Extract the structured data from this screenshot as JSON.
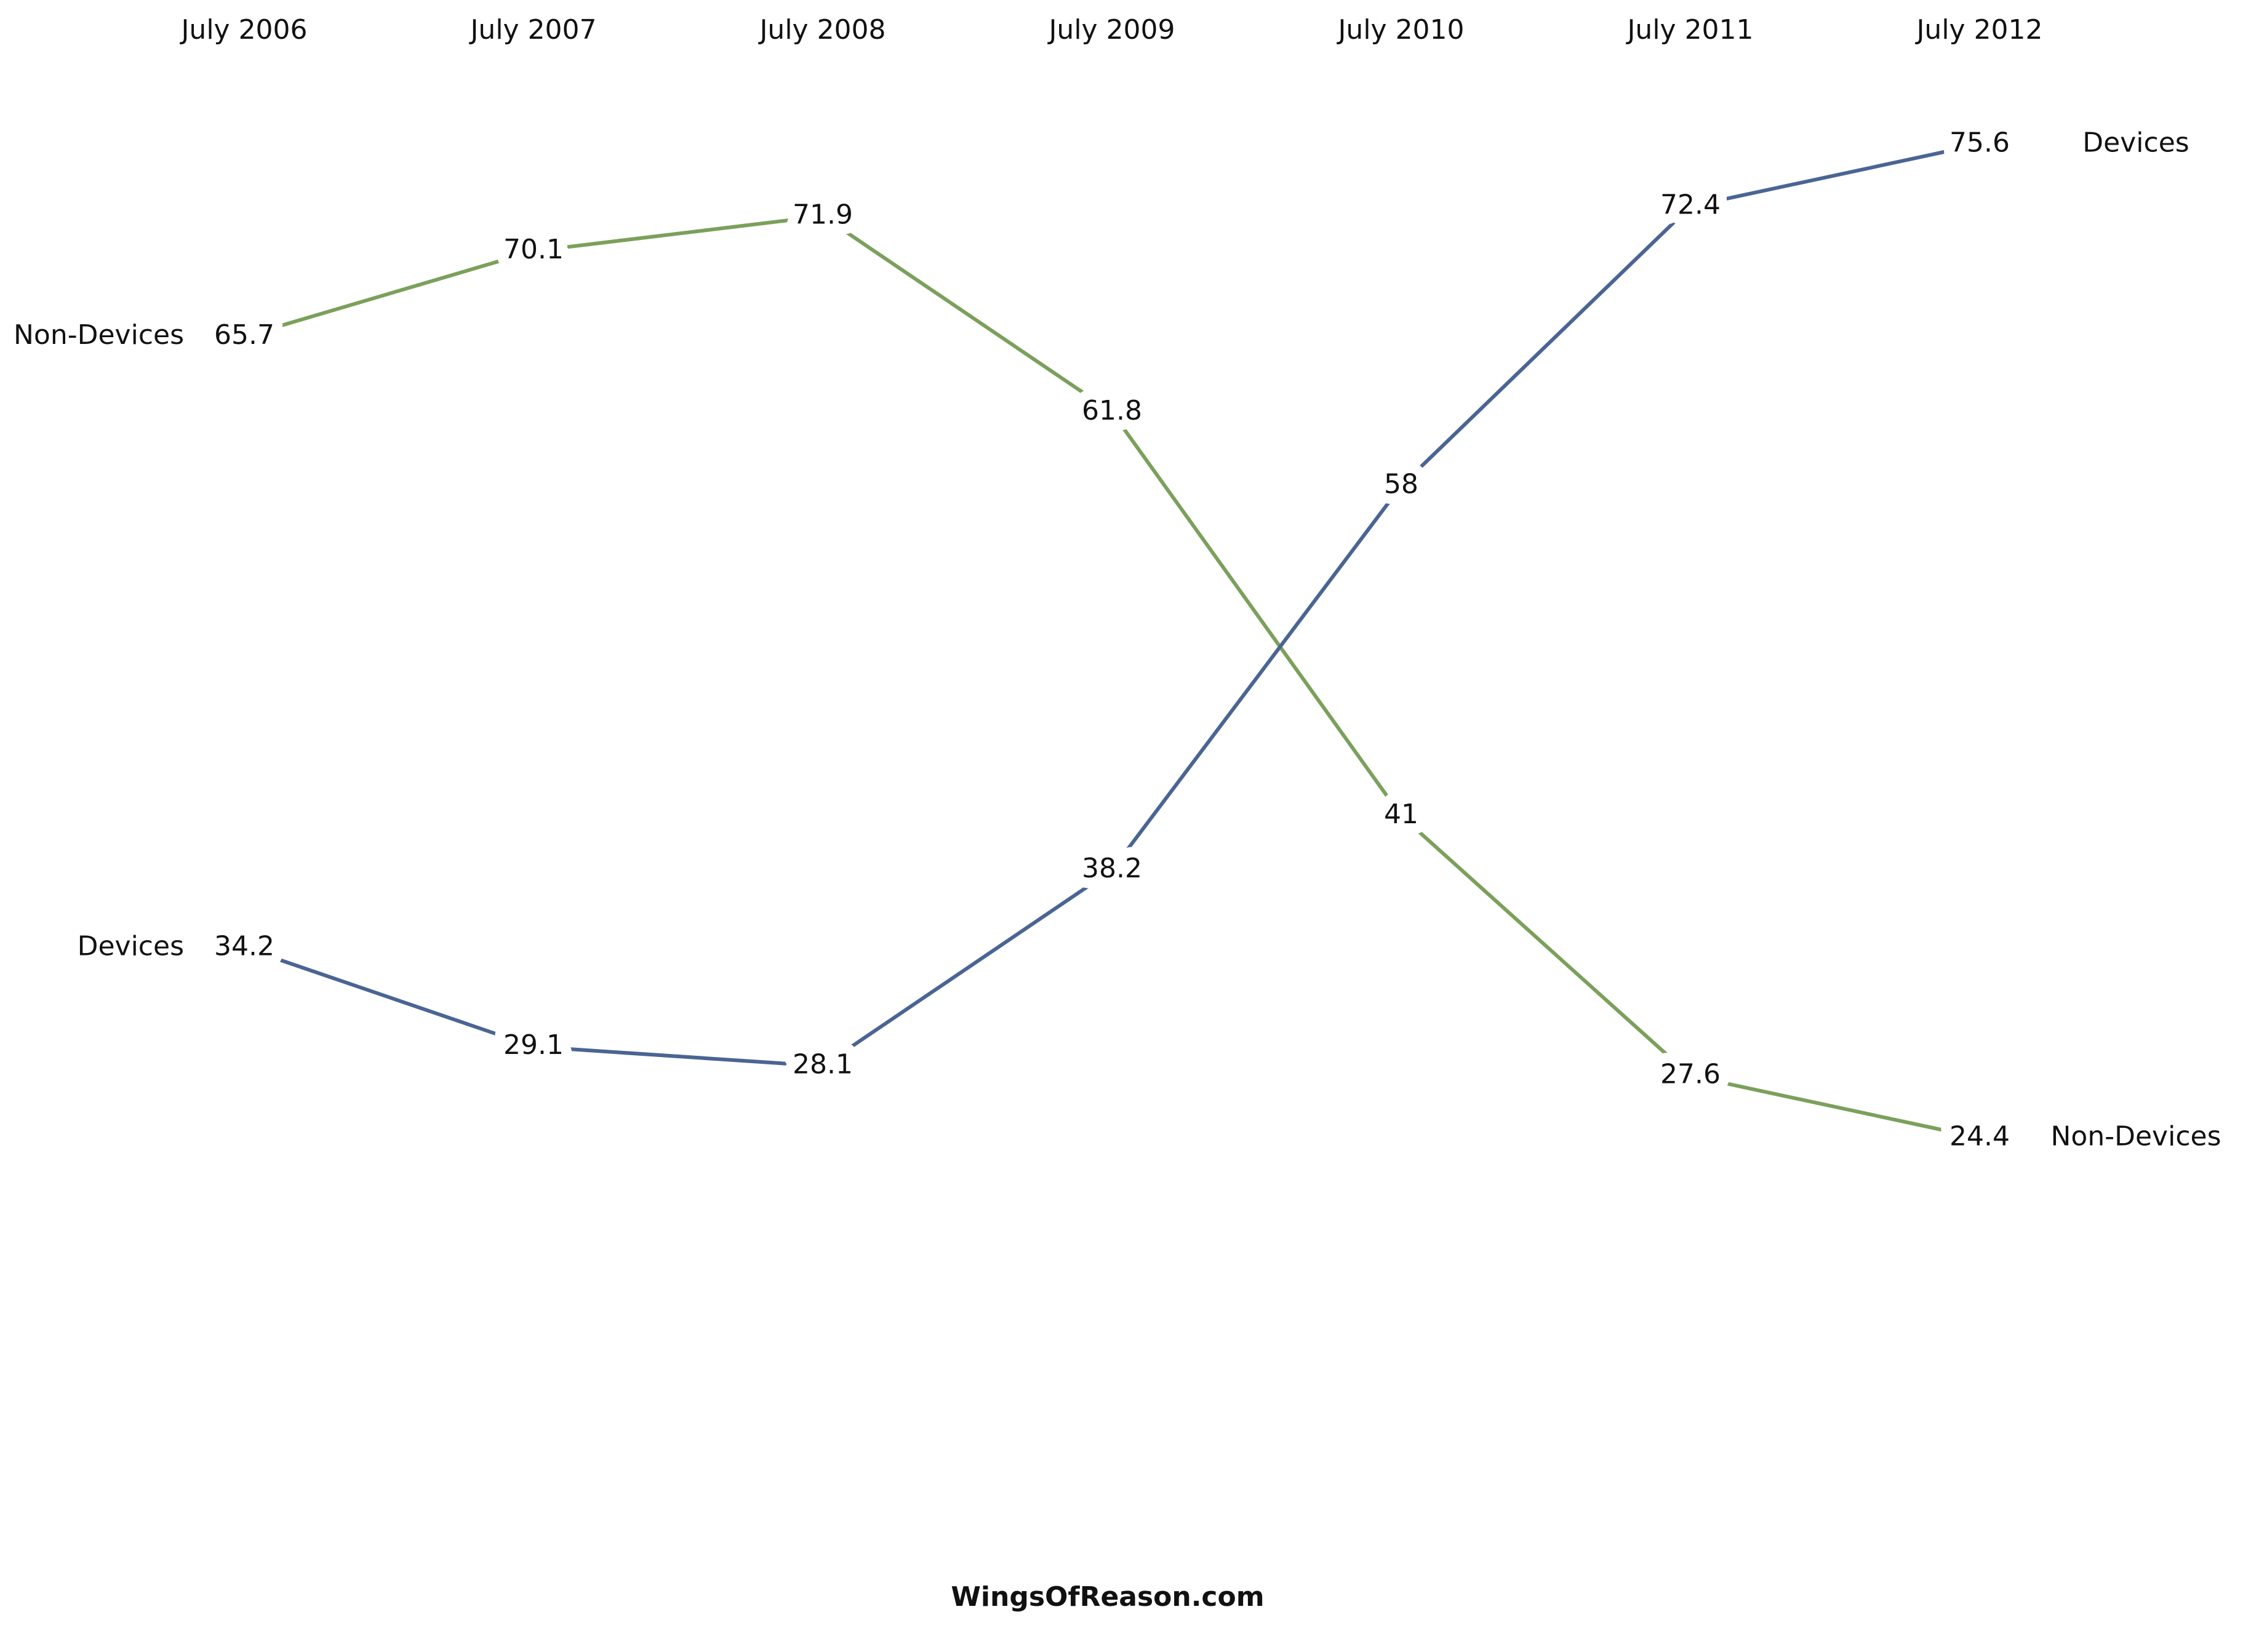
{
  "chart_data": {
    "type": "line",
    "categories": [
      "July 2006",
      "July 2007",
      "July 2008",
      "July 2009",
      "July 2010",
      "July 2011",
      "July 2012"
    ],
    "series": [
      {
        "name": "Non-Devices",
        "color": "#7ba05b",
        "values": [
          65.7,
          70.1,
          71.9,
          61.8,
          41,
          27.6,
          24.4
        ]
      },
      {
        "name": "Devices",
        "color": "#4a6593",
        "values": [
          34.2,
          29.1,
          28.1,
          38.2,
          58,
          72.4,
          75.6
        ]
      }
    ],
    "credit": "WingsOfReason.com"
  }
}
